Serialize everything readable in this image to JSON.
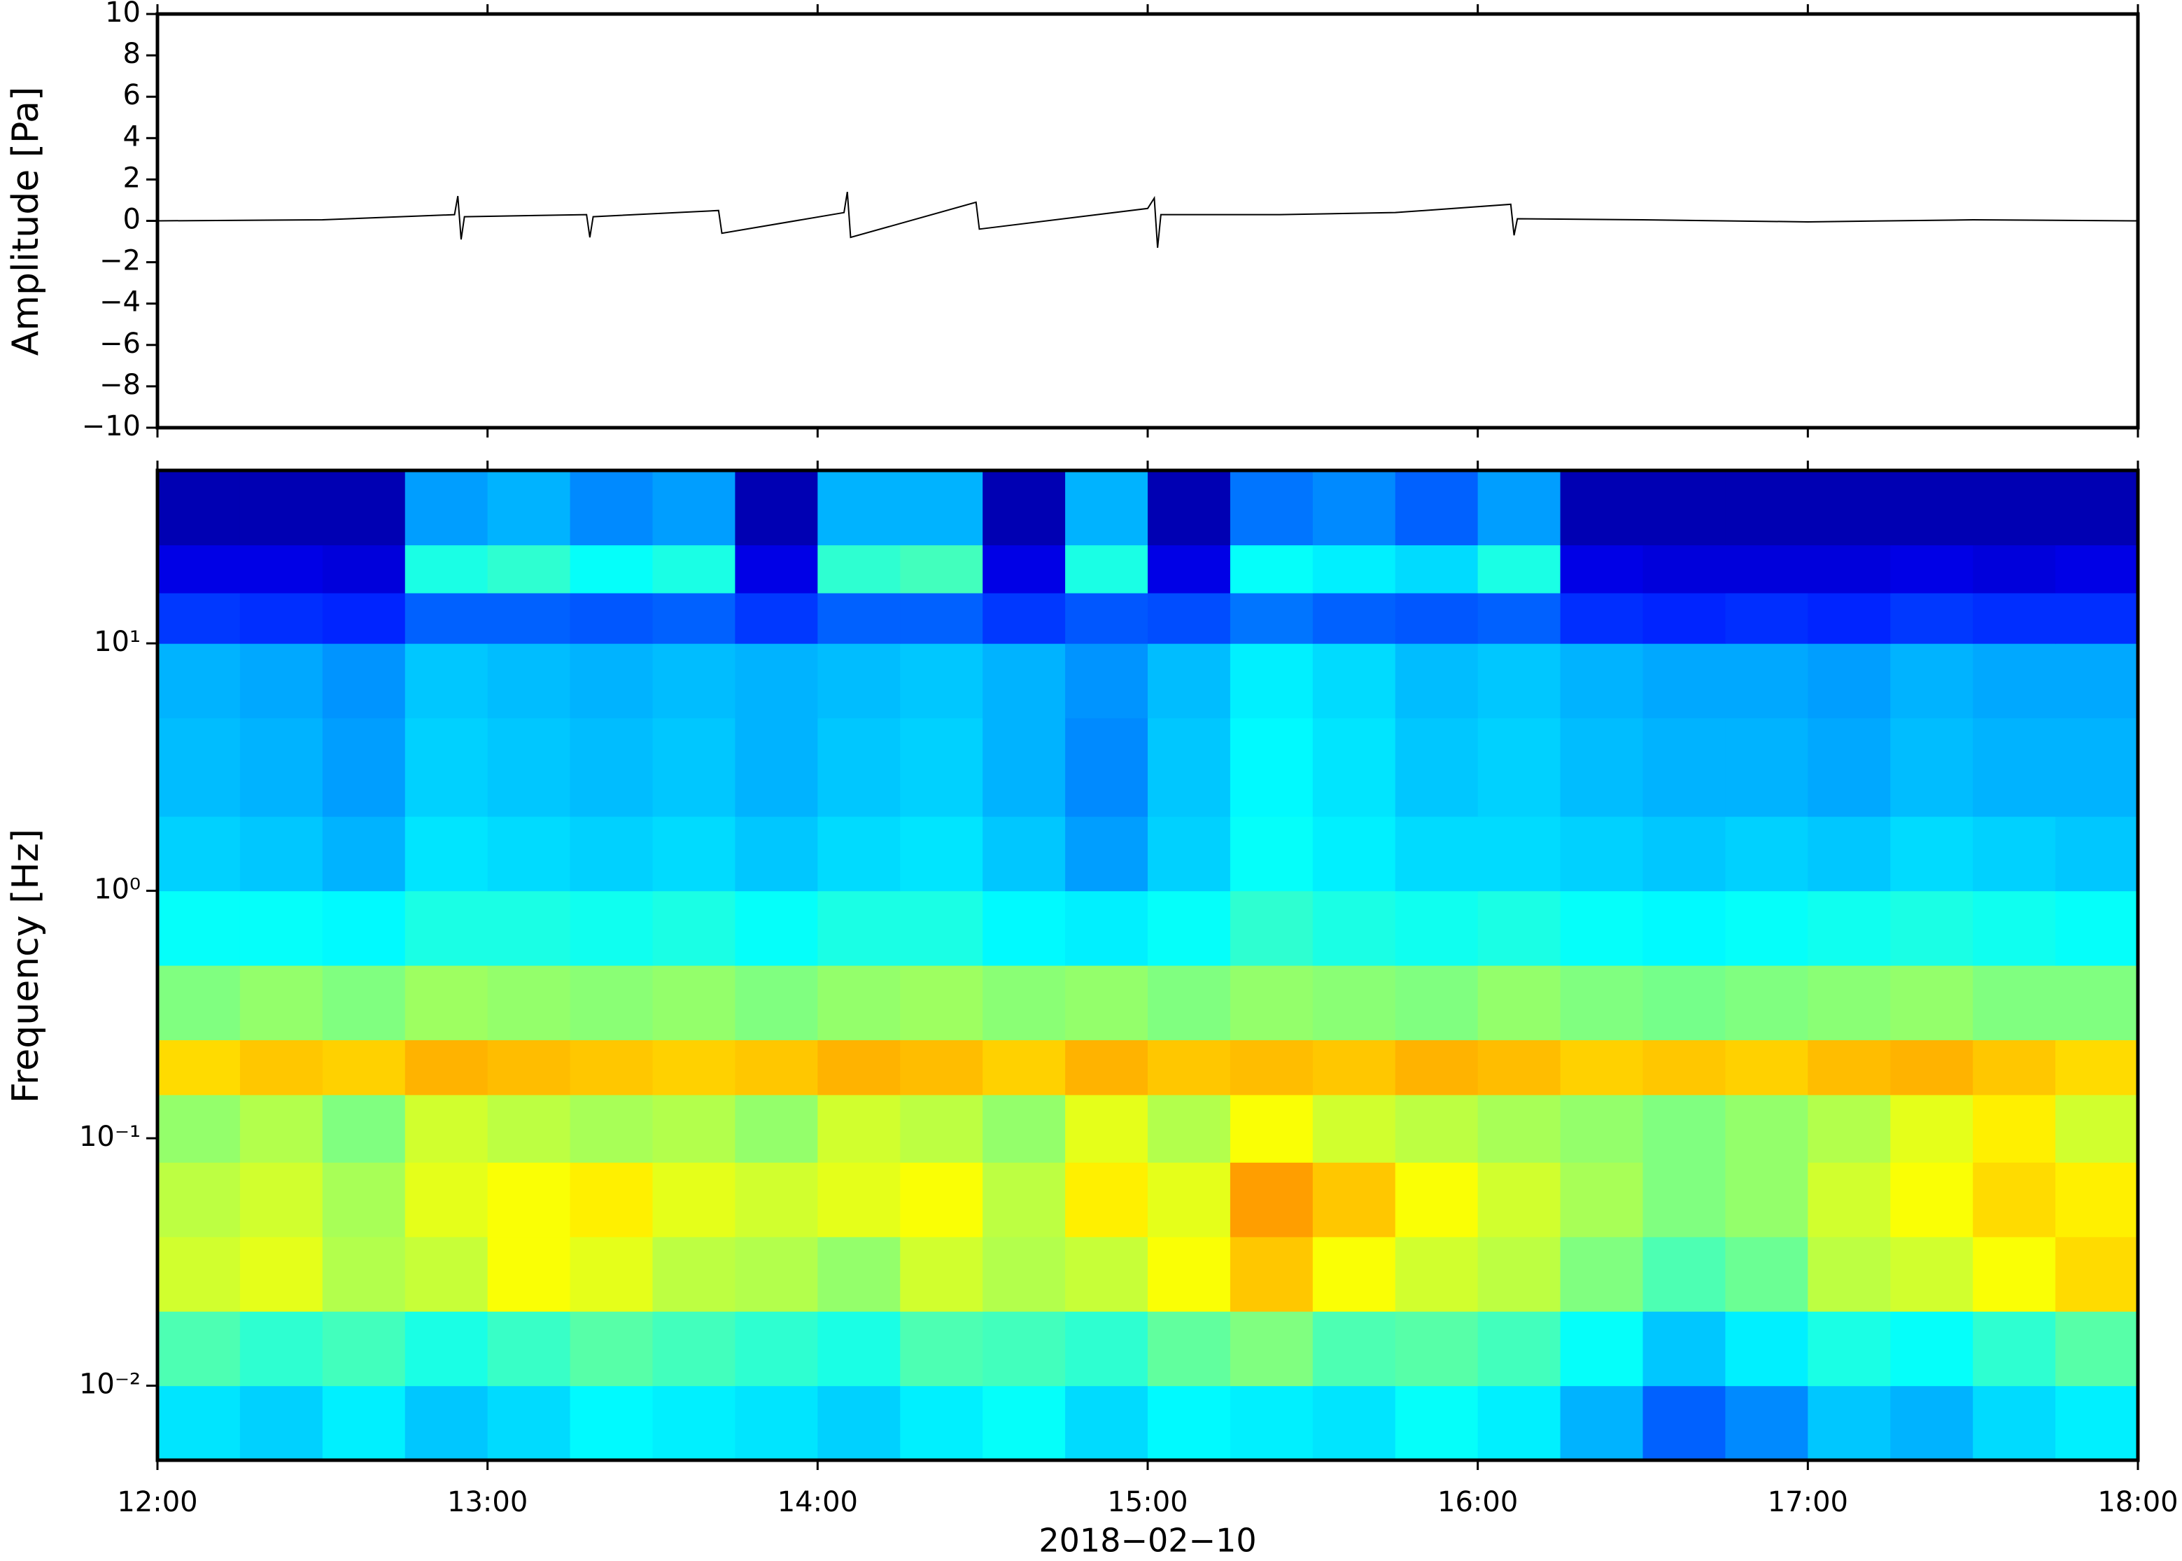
{
  "chart_data": [
    {
      "type": "line",
      "ylabel": "Amplitude [Pa]",
      "xlim": [
        12,
        18
      ],
      "ylim": [
        -10,
        10
      ],
      "yticks": [
        {
          "value": -10,
          "label": "−10"
        },
        {
          "value": -8,
          "label": "−8"
        },
        {
          "value": -6,
          "label": "−6"
        },
        {
          "value": -4,
          "label": "−4"
        },
        {
          "value": -2,
          "label": "−2"
        },
        0,
        2,
        4,
        6,
        8,
        10
      ],
      "series": [
        {
          "color": "#000000",
          "x": [
            12.0,
            12.5,
            12.9,
            12.91,
            12.92,
            12.93,
            13.3,
            13.31,
            13.32,
            13.7,
            13.71,
            14.08,
            14.09,
            14.1,
            14.48,
            14.49,
            15.0,
            15.02,
            15.03,
            15.04,
            15.4,
            15.75,
            16.1,
            16.11,
            16.12,
            16.5,
            17.0,
            17.5,
            18.0
          ],
          "values": [
            0,
            0.05,
            0.3,
            1.2,
            -0.9,
            0.2,
            0.3,
            -0.8,
            0.2,
            0.5,
            -0.6,
            0.4,
            1.4,
            -0.8,
            0.9,
            -0.4,
            0.6,
            1.1,
            -1.3,
            0.3,
            0.3,
            0.4,
            0.8,
            -0.7,
            0.1,
            0.05,
            -0.05,
            0.05,
            0
          ]
        }
      ]
    },
    {
      "type": "heatmap",
      "ylabel": "Frequency [Hz]",
      "xlabel": "2018−02−10",
      "colormap": "jet",
      "log_y": true,
      "xlim": [
        12,
        18
      ],
      "ylim": [
        0.005,
        50
      ],
      "xticks": [
        {
          "value": 12,
          "label": "12:00"
        },
        {
          "value": 13,
          "label": "13:00"
        },
        {
          "value": 14,
          "label": "14:00"
        },
        {
          "value": 15,
          "label": "15:00"
        },
        {
          "value": 16,
          "label": "16:00"
        },
        {
          "value": 17,
          "label": "17:00"
        },
        {
          "value": 18,
          "label": "18:00"
        }
      ],
      "yticks": [
        {
          "value": 0.01,
          "label": "10⁻²"
        },
        {
          "value": 0.1,
          "label": "10⁻¹"
        },
        {
          "value": 1,
          "label": "10⁰"
        },
        {
          "value": 10,
          "label": "10¹"
        }
      ],
      "x_edges": [
        12,
        12.25,
        12.5,
        12.75,
        13,
        13.25,
        13.5,
        13.75,
        14,
        14.25,
        14.5,
        14.75,
        15,
        15.25,
        15.5,
        15.75,
        16,
        16.25,
        16.5,
        16.75,
        17,
        17.25,
        17.5,
        17.75,
        18
      ],
      "y_edges": [
        0.005,
        0.01,
        0.02,
        0.04,
        0.08,
        0.15,
        0.25,
        0.5,
        1,
        2,
        5,
        10,
        16,
        25,
        50
      ],
      "z": [
        [
          0.35,
          0.33,
          0.36,
          0.32,
          0.34,
          0.37,
          0.36,
          0.35,
          0.33,
          0.36,
          0.38,
          0.34,
          0.37,
          0.36,
          0.35,
          0.38,
          0.36,
          0.3,
          0.22,
          0.26,
          0.32,
          0.3,
          0.34,
          0.36
        ],
        [
          0.45,
          0.42,
          0.44,
          0.4,
          0.43,
          0.46,
          0.44,
          0.42,
          0.4,
          0.45,
          0.44,
          0.42,
          0.47,
          0.5,
          0.45,
          0.46,
          0.44,
          0.38,
          0.32,
          0.36,
          0.4,
          0.38,
          0.42,
          0.46
        ],
        [
          0.58,
          0.6,
          0.55,
          0.57,
          0.62,
          0.6,
          0.56,
          0.55,
          0.52,
          0.58,
          0.55,
          0.57,
          0.62,
          0.68,
          0.62,
          0.58,
          0.56,
          0.5,
          0.45,
          0.48,
          0.56,
          0.58,
          0.62,
          0.66
        ],
        [
          0.56,
          0.58,
          0.54,
          0.6,
          0.62,
          0.64,
          0.6,
          0.58,
          0.6,
          0.62,
          0.56,
          0.64,
          0.6,
          0.72,
          0.68,
          0.62,
          0.58,
          0.54,
          0.5,
          0.52,
          0.58,
          0.62,
          0.66,
          0.64
        ],
        [
          0.52,
          0.55,
          0.5,
          0.58,
          0.56,
          0.54,
          0.55,
          0.52,
          0.58,
          0.56,
          0.52,
          0.6,
          0.55,
          0.62,
          0.58,
          0.56,
          0.54,
          0.52,
          0.5,
          0.52,
          0.55,
          0.6,
          0.64,
          0.58
        ],
        [
          0.66,
          0.68,
          0.67,
          0.7,
          0.69,
          0.68,
          0.67,
          0.68,
          0.7,
          0.69,
          0.67,
          0.7,
          0.68,
          0.69,
          0.68,
          0.7,
          0.69,
          0.67,
          0.68,
          0.67,
          0.69,
          0.7,
          0.68,
          0.66
        ],
        [
          0.5,
          0.52,
          0.5,
          0.53,
          0.52,
          0.51,
          0.52,
          0.5,
          0.52,
          0.53,
          0.51,
          0.52,
          0.5,
          0.52,
          0.51,
          0.5,
          0.52,
          0.5,
          0.49,
          0.5,
          0.51,
          0.52,
          0.5,
          0.5
        ],
        [
          0.38,
          0.38,
          0.37,
          0.4,
          0.4,
          0.39,
          0.4,
          0.38,
          0.4,
          0.4,
          0.37,
          0.36,
          0.38,
          0.42,
          0.4,
          0.39,
          0.4,
          0.38,
          0.37,
          0.38,
          0.39,
          0.4,
          0.39,
          0.38
        ],
        [
          0.33,
          0.32,
          0.3,
          0.35,
          0.34,
          0.33,
          0.34,
          0.32,
          0.34,
          0.35,
          0.32,
          0.28,
          0.33,
          0.38,
          0.36,
          0.34,
          0.34,
          0.33,
          0.32,
          0.33,
          0.32,
          0.34,
          0.33,
          0.32
        ],
        [
          0.31,
          0.3,
          0.28,
          0.33,
          0.32,
          0.31,
          0.32,
          0.3,
          0.32,
          0.33,
          0.3,
          0.26,
          0.32,
          0.37,
          0.35,
          0.32,
          0.33,
          0.31,
          0.3,
          0.3,
          0.29,
          0.31,
          0.3,
          0.3
        ],
        [
          0.3,
          0.29,
          0.27,
          0.32,
          0.31,
          0.3,
          0.31,
          0.3,
          0.31,
          0.32,
          0.3,
          0.27,
          0.31,
          0.36,
          0.34,
          0.31,
          0.32,
          0.3,
          0.29,
          0.29,
          0.28,
          0.3,
          0.29,
          0.29
        ],
        [
          0.18,
          0.17,
          0.16,
          0.22,
          0.22,
          0.21,
          0.22,
          0.18,
          0.22,
          0.22,
          0.18,
          0.21,
          0.2,
          0.24,
          0.22,
          0.21,
          0.22,
          0.17,
          0.16,
          0.17,
          0.16,
          0.18,
          0.17,
          0.17
        ],
        [
          0.1,
          0.1,
          0.09,
          0.4,
          0.42,
          0.38,
          0.4,
          0.1,
          0.42,
          0.44,
          0.1,
          0.4,
          0.1,
          0.38,
          0.36,
          0.34,
          0.4,
          0.1,
          0.09,
          0.09,
          0.09,
          0.1,
          0.09,
          0.1
        ],
        [
          0.05,
          0.05,
          0.05,
          0.28,
          0.3,
          0.26,
          0.28,
          0.05,
          0.3,
          0.3,
          0.05,
          0.3,
          0.05,
          0.24,
          0.26,
          0.22,
          0.28,
          0.05,
          0.05,
          0.05,
          0.05,
          0.05,
          0.05,
          0.05
        ]
      ]
    }
  ]
}
